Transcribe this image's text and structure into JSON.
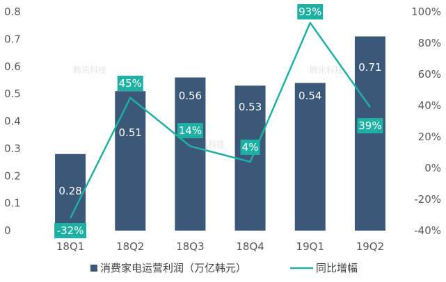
{
  "chart_data": {
    "type": "bar",
    "categories": [
      "18Q1",
      "18Q2",
      "18Q3",
      "18Q4",
      "19Q1",
      "19Q2"
    ],
    "series": [
      {
        "name": "消费家电运营利润（万亿韩元）",
        "kind": "bar",
        "axis": "left",
        "values": [
          0.28,
          0.51,
          0.56,
          0.53,
          0.54,
          0.71
        ],
        "labels": [
          "0.28",
          "0.51",
          "0.56",
          "0.53",
          "0.54",
          "0.71"
        ]
      },
      {
        "name": "同比增幅",
        "kind": "line",
        "axis": "right",
        "values": [
          -32,
          45,
          14,
          4,
          93,
          39
        ],
        "labels": [
          "-32%",
          "45%",
          "14%",
          "4%",
          "93%",
          "39%"
        ]
      }
    ],
    "y_left": {
      "ylim": [
        0,
        0.8
      ],
      "ticks": [
        "0",
        "0.1",
        "0.2",
        "0.3",
        "0.4",
        "0.5",
        "0.6",
        "0.7",
        "0.8"
      ]
    },
    "y_right": {
      "ylim": [
        -40,
        100
      ],
      "ticks": [
        "-40%",
        "-20%",
        "0%",
        "20%",
        "40%",
        "60%",
        "80%",
        "100%"
      ]
    },
    "legend_position": "bottom",
    "grid": false,
    "colors": {
      "bar": "#3b5878",
      "line": "#1fb0a4",
      "tick": "#595959"
    },
    "watermark": "腾讯科技"
  }
}
